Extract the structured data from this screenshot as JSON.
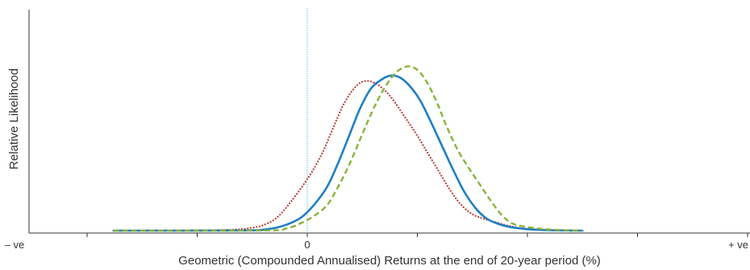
{
  "chart_data": {
    "type": "line",
    "title": "",
    "xlabel": "Geometric (Compounded Annualised) Returns at the end of 20-year period (%)",
    "ylabel": "Relative Likelihood",
    "x_ticks": [
      {
        "value": -10,
        "label": "– ve"
      },
      {
        "value": -5,
        "label": ""
      },
      {
        "value": 0,
        "label": "0"
      },
      {
        "value": 5,
        "label": ""
      },
      {
        "value": 10,
        "label": ""
      },
      {
        "value": 15,
        "label": ""
      },
      {
        "value": 20,
        "label": "+ ve"
      }
    ],
    "xlim": [
      -10,
      20
    ],
    "ylim": [
      0,
      1.0
    ],
    "zero_reference_line": {
      "x": 0,
      "color": "#5bb8d4"
    },
    "grid": false,
    "legend": "none",
    "series": [
      {
        "id": "red-dotted",
        "style": "dotted",
        "color": "#b5403a",
        "points": [
          [
            -8.8,
            0
          ],
          [
            -4,
            0.003
          ],
          [
            -2.5,
            0.016
          ],
          [
            -1.8,
            0.04
          ],
          [
            -1.3,
            0.08
          ],
          [
            -0.8,
            0.15
          ],
          [
            -0.3,
            0.23
          ],
          [
            0.2,
            0.32
          ],
          [
            0.7,
            0.43
          ],
          [
            1.2,
            0.57
          ],
          [
            1.6,
            0.68
          ],
          [
            2.0,
            0.76
          ],
          [
            2.4,
            0.81
          ],
          [
            2.8,
            0.82
          ],
          [
            3.2,
            0.8
          ],
          [
            3.6,
            0.76
          ],
          [
            4.0,
            0.7
          ],
          [
            4.5,
            0.61
          ],
          [
            5.0,
            0.52
          ],
          [
            5.5,
            0.42
          ],
          [
            6.0,
            0.32
          ],
          [
            6.5,
            0.22
          ],
          [
            7.0,
            0.14
          ],
          [
            7.5,
            0.09
          ],
          [
            8.0,
            0.065
          ],
          [
            8.6,
            0.045
          ],
          [
            9.2,
            0.025
          ],
          [
            10.0,
            0.01
          ],
          [
            11.5,
            0.002
          ],
          [
            12.5,
            0
          ]
        ]
      },
      {
        "id": "blue-solid",
        "style": "solid",
        "color": "#1f7fc1",
        "points": [
          [
            -8.8,
            0
          ],
          [
            -3,
            0.001
          ],
          [
            -1.8,
            0.008
          ],
          [
            -1.0,
            0.03
          ],
          [
            -0.3,
            0.07
          ],
          [
            0.3,
            0.14
          ],
          [
            0.9,
            0.24
          ],
          [
            1.4,
            0.37
          ],
          [
            1.9,
            0.52
          ],
          [
            2.4,
            0.67
          ],
          [
            2.9,
            0.78
          ],
          [
            3.4,
            0.83
          ],
          [
            3.8,
            0.85
          ],
          [
            4.2,
            0.84
          ],
          [
            4.6,
            0.8
          ],
          [
            5.1,
            0.72
          ],
          [
            5.6,
            0.6
          ],
          [
            6.1,
            0.47
          ],
          [
            6.6,
            0.34
          ],
          [
            7.1,
            0.22
          ],
          [
            7.6,
            0.13
          ],
          [
            8.1,
            0.07
          ],
          [
            8.6,
            0.04
          ],
          [
            9.2,
            0.02
          ],
          [
            10.0,
            0.008
          ],
          [
            11.0,
            0.002
          ],
          [
            12.5,
            0
          ]
        ]
      },
      {
        "id": "green-dashed",
        "style": "dashed",
        "color": "#8bb23a",
        "points": [
          [
            -8.8,
            0
          ],
          [
            -2,
            0.001
          ],
          [
            -1.0,
            0.01
          ],
          [
            -0.3,
            0.04
          ],
          [
            0.3,
            0.08
          ],
          [
            0.9,
            0.14
          ],
          [
            1.4,
            0.24
          ],
          [
            1.9,
            0.36
          ],
          [
            2.4,
            0.5
          ],
          [
            2.9,
            0.64
          ],
          [
            3.4,
            0.76
          ],
          [
            3.9,
            0.85
          ],
          [
            4.3,
            0.89
          ],
          [
            4.7,
            0.9
          ],
          [
            5.1,
            0.87
          ],
          [
            5.5,
            0.8
          ],
          [
            5.9,
            0.7
          ],
          [
            6.3,
            0.58
          ],
          [
            6.8,
            0.45
          ],
          [
            7.3,
            0.35
          ],
          [
            7.8,
            0.26
          ],
          [
            8.3,
            0.17
          ],
          [
            8.8,
            0.09
          ],
          [
            9.3,
            0.04
          ],
          [
            10.0,
            0.02
          ],
          [
            11.0,
            0.006
          ],
          [
            12.5,
            0
          ]
        ]
      }
    ]
  }
}
